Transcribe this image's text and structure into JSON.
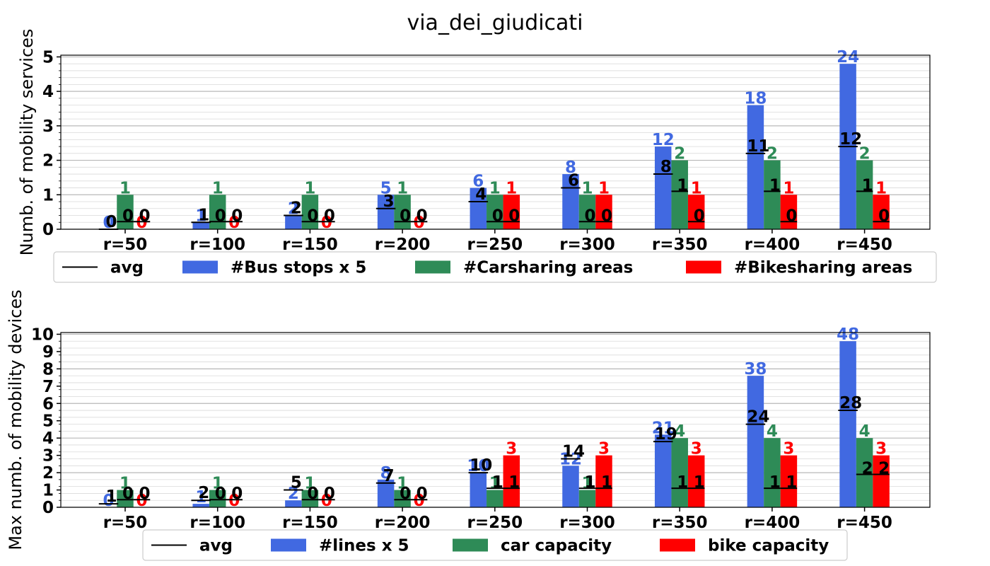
{
  "title": "via_dei_giudicati",
  "colors": {
    "avg": "#000000",
    "blue": "#4169E1",
    "green": "#2E8B57",
    "red": "#FF0000"
  },
  "chart_data": [
    {
      "type": "bar",
      "ylabel": "Numb. of mobility services",
      "ylim": [
        0,
        5.05
      ],
      "yticks": [
        0,
        1,
        2,
        3,
        4,
        5
      ],
      "minor_step": 0.2,
      "grid": true,
      "legend_placement": "below",
      "categories": [
        "r=50",
        "r=100",
        "r=150",
        "r=200",
        "r=250",
        "r=300",
        "r=350",
        "r=400",
        "r=450"
      ],
      "avg": {
        "name": "avg",
        "values": [
          0,
          1,
          2,
          3,
          4,
          6,
          8,
          11,
          12
        ]
      },
      "series": [
        {
          "name": "#Bus stops x 5",
          "color": "#4169E1",
          "values": [
            0,
            0.2,
            0.4,
            1.0,
            1.2,
            1.6,
            2.4,
            3.6,
            4.8
          ],
          "labels": [
            "0",
            "1",
            "2",
            "5",
            "6",
            "8",
            "12",
            "18",
            "24"
          ]
        },
        {
          "name": "#Carsharing areas",
          "color": "#2E8B57",
          "values": [
            1,
            1,
            1,
            1,
            1,
            1,
            2,
            2,
            2
          ],
          "labels": [
            "1",
            "1",
            "1",
            "1",
            "1",
            "1",
            "2",
            "2",
            "2"
          ]
        },
        {
          "name": "#Bikesharing areas",
          "color": "#FF0000",
          "values": [
            0,
            0,
            0,
            0,
            1,
            1,
            1,
            1,
            1
          ],
          "labels": [
            "0",
            "0",
            "0",
            "0",
            "1",
            "1",
            "1",
            "1",
            "1"
          ]
        }
      ]
    },
    {
      "type": "bar",
      "ylabel": "Max numb. of mobility devices",
      "ylim": [
        0,
        10.1
      ],
      "yticks": [
        0,
        1,
        2,
        3,
        4,
        5,
        6,
        7,
        8,
        9,
        10
      ],
      "minor_step": 0.4,
      "grid": true,
      "legend_placement": "below",
      "categories": [
        "r=50",
        "r=100",
        "r=150",
        "r=200",
        "r=250",
        "r=300",
        "r=350",
        "r=400",
        "r=450"
      ],
      "avg": {
        "name": "avg",
        "values": [
          1,
          2,
          5,
          7,
          10,
          14,
          19,
          24,
          28
        ]
      },
      "series": [
        {
          "name": "#lines x 5",
          "color": "#4169E1",
          "values": [
            0,
            0.2,
            0.4,
            1.6,
            2.0,
            2.4,
            4.2,
            7.6,
            9.6
          ],
          "labels": [
            "0",
            "1",
            "2",
            "8",
            "10",
            "12",
            "21",
            "38",
            "48"
          ]
        },
        {
          "name": "car capacity",
          "color": "#2E8B57",
          "values": [
            1,
            1,
            1,
            1,
            1,
            1,
            4,
            4,
            4
          ],
          "labels": [
            "1",
            "1",
            "1",
            "1",
            "1",
            "1",
            "4",
            "4",
            "4"
          ]
        },
        {
          "name": "bike capacity",
          "color": "#FF0000",
          "values": [
            0,
            0,
            0,
            0,
            3,
            3,
            3,
            3,
            3
          ],
          "labels": [
            "0",
            "0",
            "0",
            "0",
            "3",
            "3",
            "3",
            "3",
            "3"
          ]
        }
      ],
      "extra_labels": {
        "green_avg": [
          0,
          0,
          0,
          0,
          1,
          1,
          1,
          1,
          2
        ],
        "red_avg": [
          0,
          0,
          0,
          0,
          1,
          1,
          1,
          1,
          2
        ]
      }
    }
  ]
}
